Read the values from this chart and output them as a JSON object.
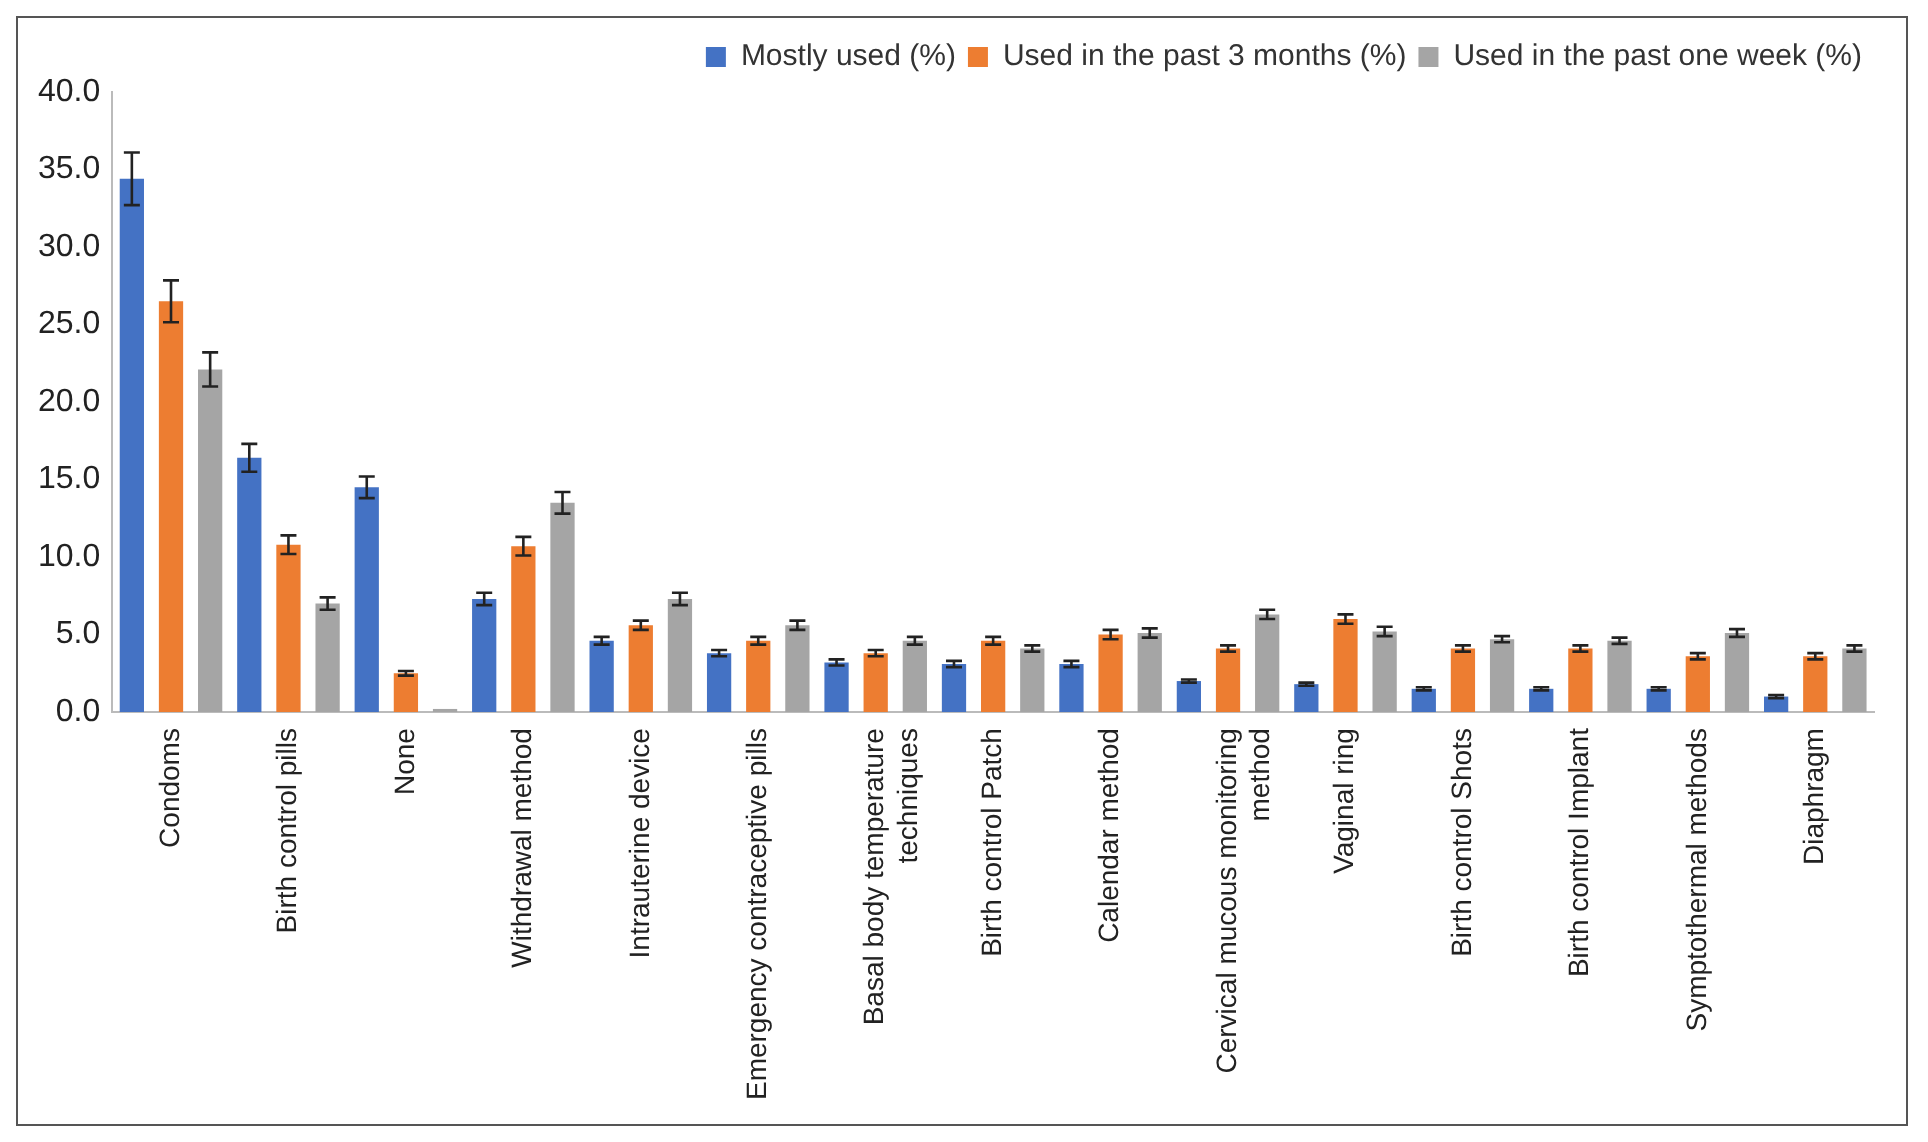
{
  "chart_data": {
    "type": "bar",
    "categories": [
      "Condoms",
      "Birth control pills",
      "None",
      "Withdrawal method",
      "Intrauterine device",
      "Emergency contraceptive pills",
      "Basal body temperature techniques",
      "Birth control Patch",
      "Calendar method",
      "Cervical mucous monitoring method",
      "Vaginal ring",
      "Birth control Shots",
      "Birth control Implant",
      "Symptothermal methods",
      "Diaphragm"
    ],
    "series": [
      {
        "name": "Mostly used (%)",
        "color": "#4472c4",
        "values": [
          34.4,
          16.4,
          14.5,
          7.3,
          4.6,
          3.8,
          3.2,
          3.1,
          3.1,
          2.0,
          1.8,
          1.5,
          1.5,
          1.5,
          1.0
        ],
        "errors": [
          1.7,
          0.9,
          0.7,
          0.4,
          0.25,
          0.2,
          0.2,
          0.2,
          0.2,
          0.1,
          0.1,
          0.1,
          0.1,
          0.1,
          0.1
        ]
      },
      {
        "name": "Used in the past 3 months (%)",
        "color": "#ed7d31",
        "values": [
          26.5,
          10.8,
          2.5,
          10.7,
          5.6,
          4.6,
          3.8,
          4.6,
          5.0,
          4.1,
          6.0,
          4.1,
          4.1,
          3.6,
          3.6
        ],
        "errors": [
          1.35,
          0.6,
          0.15,
          0.6,
          0.3,
          0.25,
          0.2,
          0.25,
          0.3,
          0.2,
          0.3,
          0.2,
          0.2,
          0.2,
          0.2
        ]
      },
      {
        "name": "Used in the past one week (%)",
        "color": "#a5a5a5",
        "values": [
          22.1,
          7.0,
          0.2,
          13.5,
          7.3,
          5.6,
          4.6,
          4.1,
          5.1,
          6.3,
          5.2,
          4.7,
          4.6,
          5.1,
          4.1
        ],
        "errors": [
          1.1,
          0.4,
          null,
          0.7,
          0.4,
          0.3,
          0.25,
          0.2,
          0.3,
          0.3,
          0.3,
          0.2,
          0.2,
          0.25,
          0.2
        ]
      }
    ],
    "ylim": [
      0,
      40
    ],
    "yticks": [
      {
        "value": 0,
        "label": "0.0"
      },
      {
        "value": 5,
        "label": "5.0"
      },
      {
        "value": 10,
        "label": "10.0"
      },
      {
        "value": 15,
        "label": "15.0"
      },
      {
        "value": 20,
        "label": "20.0"
      },
      {
        "value": 25,
        "label": "25.0"
      },
      {
        "value": 30,
        "label": "30.0"
      },
      {
        "value": 35,
        "label": "35.0"
      },
      {
        "value": 40,
        "label": "40.0"
      }
    ],
    "grid": false,
    "legend": "top right"
  }
}
